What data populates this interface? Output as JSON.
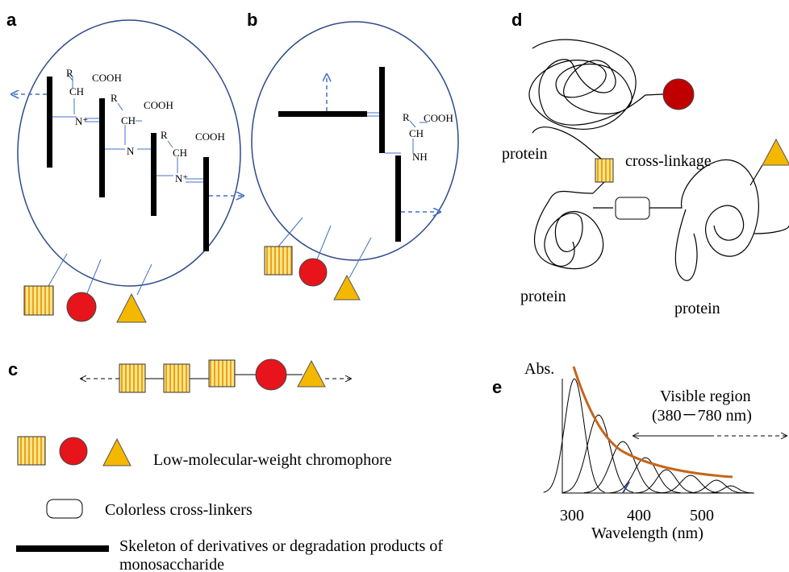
{
  "panel_labels": {
    "a": "a",
    "b": "b",
    "c": "c",
    "d": "d",
    "e": "e"
  },
  "panel_a": {
    "chem": [
      "R",
      "CH",
      "COOH",
      "N⁺",
      "R",
      "CH",
      "COOH",
      "N",
      "R",
      "CH",
      "COOH",
      "N⁺"
    ]
  },
  "panel_b": {
    "chem": [
      "R",
      "COOH",
      "CH",
      "NH"
    ]
  },
  "panel_d": {
    "labels": [
      "protein",
      "cross-linkage",
      "protein",
      "protein"
    ]
  },
  "panel_e": {
    "y_label": "Abs.",
    "region": "Visible region",
    "range": "(380－780 nm)",
    "x_ticks": [
      "300",
      "400",
      "500"
    ],
    "x_label": "Wavelength (nm)"
  },
  "legend": {
    "chromophore": "Low-molecular-weight chromophore",
    "crosslinker": "Colorless cross-linkers",
    "skeleton": [
      "Skeleton of derivatives or degradation products of",
      "monosaccharide"
    ]
  }
}
